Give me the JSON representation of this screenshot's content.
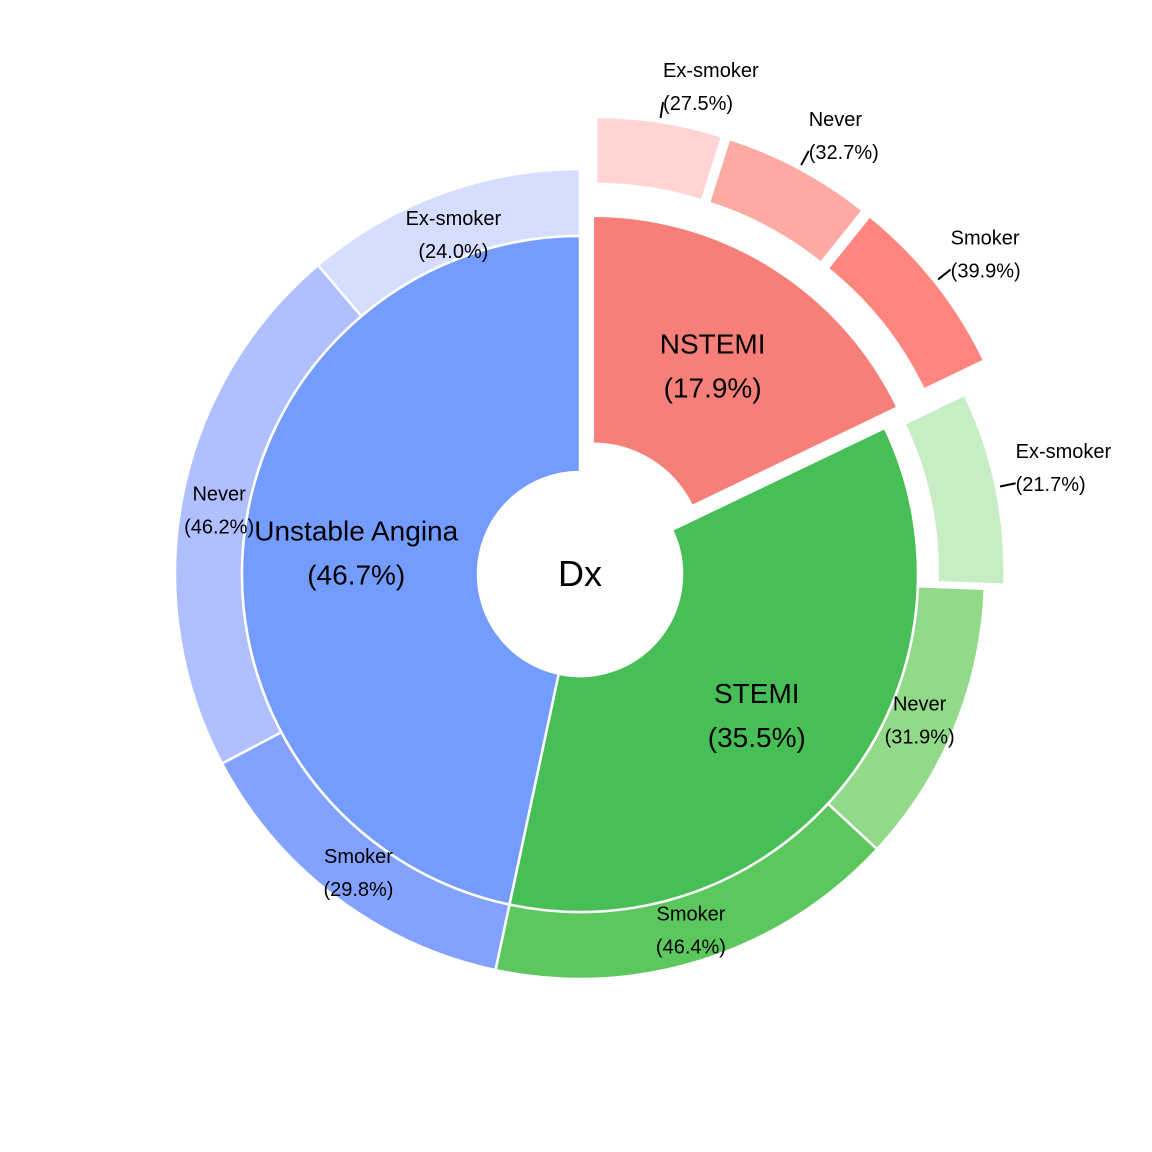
{
  "chart_data": {
    "type": "pie",
    "subtype": "nested-donut",
    "center_label": "Dx",
    "inner": [
      {
        "name": "NSTEMI",
        "pct_label": "(17.9%)",
        "value": 17.9,
        "color": "#F67F79",
        "exploded": true
      },
      {
        "name": "STEMI",
        "pct_label": "(35.5%)",
        "value": 35.5,
        "color": "#47BF56",
        "exploded": false
      },
      {
        "name": "Unstable Angina",
        "pct_label": "(46.7%)",
        "value": 46.7,
        "color": "#749CFF",
        "exploded": false
      }
    ],
    "outer": [
      {
        "parent": "NSTEMI",
        "name": "Ex-smoker",
        "pct_label": "(27.5%)",
        "value": 27.5,
        "color": "#FFD5D3"
      },
      {
        "parent": "NSTEMI",
        "name": "Never",
        "pct_label": "(32.7%)",
        "value": 32.7,
        "color": "#FDAAA2"
      },
      {
        "parent": "NSTEMI",
        "name": "Smoker",
        "pct_label": "(39.9%)",
        "value": 39.9,
        "color": "#FF857E"
      },
      {
        "parent": "STEMI",
        "name": "Ex-smoker",
        "pct_label": "(21.7%)",
        "value": 21.7,
        "color": "#C6EDC4"
      },
      {
        "parent": "STEMI",
        "name": "Never",
        "pct_label": "(31.9%)",
        "value": 31.9,
        "color": "#92D98A"
      },
      {
        "parent": "STEMI",
        "name": "Smoker",
        "pct_label": "(46.4%)",
        "value": 46.4,
        "color": "#5CC75C"
      },
      {
        "parent": "Unstable Angina",
        "name": "Smoker",
        "pct_label": "(29.8%)",
        "value": 29.8,
        "color": "#83A2FF"
      },
      {
        "parent": "Unstable Angina",
        "name": "Never",
        "pct_label": "(46.2%)",
        "value": 46.2,
        "color": "#AFBFFF"
      },
      {
        "parent": "Unstable Angina",
        "name": "Ex-smoker",
        "pct_label": "(24.0%)",
        "value": 24.0,
        "color": "#D6DEFF"
      }
    ]
  }
}
